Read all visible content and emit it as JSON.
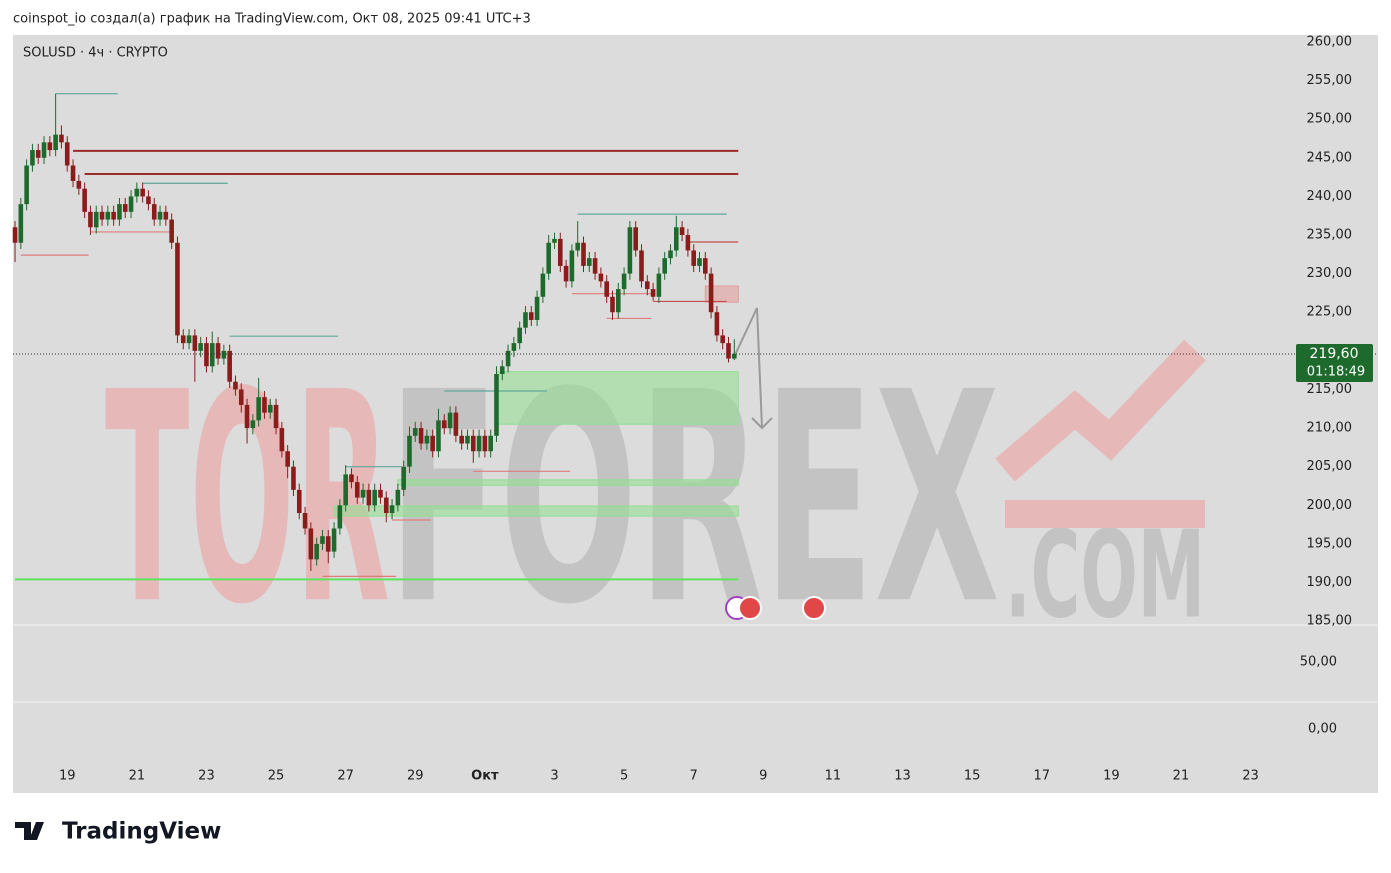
{
  "header": {
    "text": "coinspot_io создал(а) график на TradingView.com, Окт 08, 2025 09:41 UTC+3",
    "logo": "TradingView"
  },
  "watermark": {
    "left": "TOR",
    "middle": "FOREX",
    "right": ".COM"
  },
  "chart_data": {
    "type": "candlestick",
    "title": "SOLUSD · 4ч · CRYPTO",
    "up_color": "#1e6a2c",
    "down_color": "#8a1c1c",
    "candles": [
      [
        236,
        236.8,
        231.5,
        234
      ],
      [
        234,
        239.8,
        233.2,
        239
      ],
      [
        239,
        244.8,
        238.2,
        244
      ],
      [
        244,
        246.8,
        243.2,
        246
      ],
      [
        246,
        246.8,
        244.2,
        245
      ],
      [
        245,
        247.8,
        244.2,
        247
      ],
      [
        247,
        247.8,
        245.2,
        246
      ],
      [
        246,
        253.3,
        245.2,
        248
      ],
      [
        248,
        249.2,
        246.2,
        247
      ],
      [
        247,
        247.8,
        243.2,
        244
      ],
      [
        244,
        244.8,
        241.2,
        242
      ],
      [
        242,
        242.8,
        240.2,
        241
      ],
      [
        241,
        241.8,
        237.2,
        238
      ],
      [
        238,
        238.8,
        235,
        236
      ],
      [
        236,
        238.8,
        235.2,
        238
      ],
      [
        238,
        238.8,
        236.2,
        237
      ],
      [
        237,
        238.8,
        236.2,
        238
      ],
      [
        238,
        238.8,
        236.2,
        237
      ],
      [
        237,
        239.8,
        236.2,
        239
      ],
      [
        239,
        239.8,
        237.2,
        238
      ],
      [
        238,
        240.8,
        237.2,
        240
      ],
      [
        240,
        241.8,
        239.2,
        241
      ],
      [
        241,
        241.8,
        239.2,
        240
      ],
      [
        240,
        240.8,
        238.2,
        239
      ],
      [
        239,
        239.8,
        236.2,
        237
      ],
      [
        237,
        238.8,
        236.2,
        238
      ],
      [
        238,
        238.8,
        236.2,
        237
      ],
      [
        237,
        237.8,
        233.2,
        234
      ],
      [
        234,
        234.8,
        221,
        222
      ],
      [
        222,
        222.8,
        220.2,
        221
      ],
      [
        221,
        222.8,
        220.2,
        222
      ],
      [
        222,
        222.8,
        216,
        220
      ],
      [
        220,
        221.8,
        219.2,
        221
      ],
      [
        221,
        221.8,
        217.2,
        218
      ],
      [
        218,
        222.5,
        217.2,
        221
      ],
      [
        221,
        221.8,
        218.2,
        219
      ],
      [
        219,
        220.8,
        218.2,
        220
      ],
      [
        220,
        220.8,
        215.2,
        216
      ],
      [
        216,
        216.8,
        214.2,
        215
      ],
      [
        215,
        215.8,
        212,
        213
      ],
      [
        213,
        213.8,
        208,
        210
      ],
      [
        210,
        211.8,
        209.2,
        211
      ],
      [
        211,
        216.5,
        210.2,
        214
      ],
      [
        214,
        214.8,
        211.2,
        212
      ],
      [
        212,
        213.8,
        211.2,
        213
      ],
      [
        213,
        213.8,
        209.2,
        210
      ],
      [
        210,
        210.8,
        206.2,
        207
      ],
      [
        207,
        207.8,
        203.5,
        205
      ],
      [
        205,
        205.8,
        201.2,
        202
      ],
      [
        202,
        202.8,
        198.2,
        199
      ],
      [
        199,
        199.8,
        196.2,
        197
      ],
      [
        197,
        197.8,
        191.5,
        193
      ],
      [
        193,
        195.8,
        192.2,
        195
      ],
      [
        195,
        196.8,
        194.2,
        196
      ],
      [
        196,
        196.8,
        192.5,
        194
      ],
      [
        194,
        197.8,
        193.2,
        197
      ],
      [
        197,
        200.8,
        196.2,
        200
      ],
      [
        200,
        205.2,
        199.2,
        204
      ],
      [
        204,
        204.8,
        202.2,
        203
      ],
      [
        203,
        203.8,
        200.2,
        201
      ],
      [
        201,
        202.8,
        200.2,
        202
      ],
      [
        202,
        202.8,
        199.2,
        200
      ],
      [
        200,
        202.8,
        199.2,
        202
      ],
      [
        202,
        202.8,
        200.2,
        201
      ],
      [
        201,
        201.8,
        197.8,
        199
      ],
      [
        199,
        200.8,
        198.2,
        200
      ],
      [
        200,
        202.8,
        199.2,
        202
      ],
      [
        202,
        205.8,
        201.2,
        205
      ],
      [
        205,
        210.2,
        204.2,
        209
      ],
      [
        209,
        210.8,
        208.2,
        210
      ],
      [
        210,
        210.8,
        207.2,
        208
      ],
      [
        208,
        209.8,
        207.2,
        209
      ],
      [
        209,
        209.8,
        206.2,
        207
      ],
      [
        207,
        212.5,
        206.2,
        211
      ],
      [
        211,
        211.8,
        209.2,
        210
      ],
      [
        210,
        212.8,
        209.2,
        212
      ],
      [
        212,
        212.8,
        208.2,
        209
      ],
      [
        209,
        209.8,
        207.2,
        208
      ],
      [
        208,
        209.8,
        207.2,
        209
      ],
      [
        209,
        209.8,
        205.5,
        207
      ],
      [
        207,
        209.8,
        206.2,
        209
      ],
      [
        209,
        209.8,
        206.2,
        207
      ],
      [
        207,
        209.8,
        206.2,
        209
      ],
      [
        209,
        218,
        208.2,
        217
      ],
      [
        217,
        218.8,
        216.2,
        218
      ],
      [
        218,
        220.8,
        217.2,
        220
      ],
      [
        220,
        221.8,
        219.2,
        221
      ],
      [
        221,
        223.8,
        220.2,
        223
      ],
      [
        223,
        225.8,
        222.2,
        225
      ],
      [
        225,
        225.8,
        223.2,
        224
      ],
      [
        224,
        227.8,
        223.2,
        227
      ],
      [
        227,
        230.8,
        226.2,
        230
      ],
      [
        230,
        235,
        229.2,
        234
      ],
      [
        234,
        235.3,
        233.2,
        234.5
      ],
      [
        234.5,
        235.3,
        230.2,
        231
      ],
      [
        231,
        231.8,
        228.2,
        229
      ],
      [
        229,
        233.8,
        228.2,
        233
      ],
      [
        233,
        236.8,
        232.2,
        234
      ],
      [
        234,
        234.8,
        230.2,
        231
      ],
      [
        231,
        232.8,
        230.2,
        232
      ],
      [
        232,
        232.8,
        229.2,
        230
      ],
      [
        230,
        230.8,
        228.2,
        229
      ],
      [
        229,
        229.8,
        226.2,
        227
      ],
      [
        227,
        227.8,
        224,
        225
      ],
      [
        225,
        228.8,
        224.2,
        228
      ],
      [
        228,
        230.8,
        227.2,
        230
      ],
      [
        230,
        236.8,
        229.2,
        236
      ],
      [
        236,
        236.8,
        232.2,
        233
      ],
      [
        233,
        233.8,
        228.2,
        229
      ],
      [
        229,
        229.8,
        227.2,
        228
      ],
      [
        228,
        228.8,
        226.5,
        227
      ],
      [
        227,
        230.8,
        226.2,
        230
      ],
      [
        230,
        232.8,
        229.2,
        232
      ],
      [
        232,
        233.8,
        231.2,
        233
      ],
      [
        233,
        237.5,
        232.2,
        236
      ],
      [
        236,
        236.8,
        234.2,
        235
      ],
      [
        235,
        235.8,
        232.2,
        233
      ],
      [
        233,
        233.8,
        230.2,
        231
      ],
      [
        231,
        232.8,
        230.2,
        232
      ],
      [
        232,
        232.8,
        229.2,
        230
      ],
      [
        230,
        230.8,
        224.2,
        225
      ],
      [
        225,
        225.8,
        221.2,
        222
      ],
      [
        222,
        222.8,
        220.2,
        221
      ],
      [
        221,
        221.8,
        218.5,
        219
      ],
      [
        219,
        221.5,
        218.8,
        219.6
      ]
    ],
    "xlim": [
      -0.35,
      219.8
    ],
    "xticks": [
      {
        "value": 9,
        "label": "19"
      },
      {
        "value": 21,
        "label": "21"
      },
      {
        "value": 33,
        "label": "23"
      },
      {
        "value": 45,
        "label": "25"
      },
      {
        "value": 57,
        "label": "27"
      },
      {
        "value": 69,
        "label": "29"
      },
      {
        "value": 81,
        "label": "Окт"
      },
      {
        "value": 93,
        "label": "3"
      },
      {
        "value": 105,
        "label": "5"
      },
      {
        "value": 117,
        "label": "7"
      },
      {
        "value": 129,
        "label": "9"
      },
      {
        "value": 141,
        "label": "11"
      },
      {
        "value": 153,
        "label": "13"
      },
      {
        "value": 165,
        "label": "15"
      },
      {
        "value": 177,
        "label": "17"
      },
      {
        "value": 189,
        "label": "19"
      },
      {
        "value": 201,
        "label": "21"
      },
      {
        "value": 213,
        "label": "23"
      }
    ],
    "ylim": [
      184.5,
      260.9
    ],
    "yticks": [
      {
        "value": 260,
        "label": "260,00"
      },
      {
        "value": 255,
        "label": "255,00"
      },
      {
        "value": 250,
        "label": "250,00"
      },
      {
        "value": 245,
        "label": "245,00"
      },
      {
        "value": 240,
        "label": "240,00"
      },
      {
        "value": 235,
        "label": "235,00"
      },
      {
        "value": 230,
        "label": "230,00"
      },
      {
        "value": 225,
        "label": "225,00"
      },
      {
        "value": 215,
        "label": "215,00"
      },
      {
        "value": 210,
        "label": "210,00"
      },
      {
        "value": 205,
        "label": "205,00"
      },
      {
        "value": 200,
        "label": "200,00"
      },
      {
        "value": 195,
        "label": "195,00"
      },
      {
        "value": 190,
        "label": "190,00"
      },
      {
        "value": 185,
        "label": "185,00"
      }
    ],
    "last_price": {
      "value": 219.6,
      "label": "219,60"
    },
    "countdown": "01:18:49",
    "last_price_color": "#1e6a2c",
    "lower_ylim": [
      -24.6,
      77.6
    ],
    "lower_yticks": [
      {
        "value": 50,
        "label": "50,00"
      },
      {
        "value": 0,
        "label": "0,00"
      }
    ],
    "levels": [
      {
        "price": 245.9,
        "from": 10,
        "to": 124,
        "color": "#9c2b2b"
      },
      {
        "price": 242.9,
        "from": 12,
        "to": 124,
        "color": "#9c2b2b"
      },
      {
        "price": 190.4,
        "from": 0,
        "to": 124,
        "color": "#5ee35e"
      },
      {
        "price": 253.3,
        "from": 7,
        "to": 17,
        "color": "#5fa89a"
      },
      {
        "price": 241.7,
        "from": 22,
        "to": 36,
        "color": "#5fa89a"
      },
      {
        "price": 232.4,
        "from": 1,
        "to": 12,
        "color": "#e07b7b"
      },
      {
        "price": 235.4,
        "from": 13,
        "to": 26,
        "color": "#e07b7b"
      },
      {
        "price": 221.9,
        "from": 37,
        "to": 55,
        "color": "#5fa89a"
      },
      {
        "price": 190.8,
        "from": 53,
        "to": 65,
        "color": "#e07b7b"
      },
      {
        "price": 205.0,
        "from": 57,
        "to": 66,
        "color": "#5fa89a"
      },
      {
        "price": 198.1,
        "from": 65,
        "to": 71,
        "color": "#e07b7b"
      },
      {
        "price": 214.8,
        "from": 74,
        "to": 91,
        "color": "#5fa89a"
      },
      {
        "price": 204.4,
        "from": 79,
        "to": 95,
        "color": "#e07b7b"
      },
      {
        "price": 227.4,
        "from": 96,
        "to": 109,
        "color": "#e07b7b"
      },
      {
        "price": 224.2,
        "from": 102,
        "to": 109,
        "color": "#e07b7b"
      },
      {
        "price": 237.7,
        "from": 97,
        "to": 122,
        "color": "#5fa89a"
      },
      {
        "price": 234.1,
        "from": 116,
        "to": 124,
        "color": "#c25050"
      },
      {
        "price": 226.4,
        "from": 110,
        "to": 122,
        "color": "#c25050"
      }
    ],
    "zones": [
      {
        "low": 210.5,
        "high": 217.3,
        "from": 83,
        "to": 124,
        "color": "#8fe08f"
      },
      {
        "low": 202.6,
        "high": 203.3,
        "from": 66,
        "to": 124,
        "color": "#8fe08f"
      },
      {
        "low": 198.6,
        "high": 199.9,
        "from": 55,
        "to": 124,
        "color": "#8fe08f"
      },
      {
        "low": 226.3,
        "high": 228.4,
        "from": 119,
        "to": 124,
        "color": "#e39a9a"
      }
    ]
  }
}
